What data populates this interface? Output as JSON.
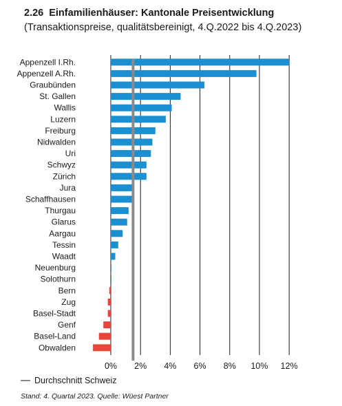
{
  "header": {
    "number": "2.26",
    "title": "Einfamilienhäuser: Kantonale Preisentwicklung",
    "subtitle": "(Transaktionspreise, qualitätsbereinigt, 4.Q.2022 bis 4.Q.2023)"
  },
  "legend": {
    "average_label": "Durchschnitt Schweiz"
  },
  "source": "Stand: 4. Quartal 2023. Quelle: Wüest Partner",
  "colors": {
    "positive": "#1a8fd1",
    "negative": "#e8463d",
    "average": "#8a8a8a",
    "grid": "#1a1a1a"
  },
  "chart_data": {
    "type": "bar",
    "orientation": "horizontal",
    "categories": [
      "Appenzell I.Rh.",
      "Appenzell A.Rh.",
      "Graubünden",
      "St. Gallen",
      "Wallis",
      "Luzern",
      "Freiburg",
      "Nidwalden",
      "Uri",
      "Schwyz",
      "Zürich",
      "Jura",
      "Schaffhausen",
      "Thurgau",
      "Glarus",
      "Aargau",
      "Tessin",
      "Waadt",
      "Neuenburg",
      "Solothurn",
      "Bern",
      "Zug",
      "Basel-Stadt",
      "Genf",
      "Basel-Land",
      "Obwalden"
    ],
    "values": [
      12.0,
      9.8,
      6.3,
      4.7,
      4.1,
      3.7,
      3.0,
      2.8,
      2.7,
      2.4,
      2.4,
      1.5,
      1.5,
      1.2,
      1.1,
      0.8,
      0.5,
      0.3,
      0.05,
      0.0,
      -0.1,
      -0.2,
      -0.2,
      -0.5,
      -0.8,
      -1.2
    ],
    "average": 1.5,
    "xlim": [
      -1.2,
      12
    ],
    "xticks": [
      0,
      2,
      4,
      6,
      8,
      10,
      12
    ],
    "xtick_labels": [
      "0%",
      "2%",
      "4%",
      "6%",
      "8%",
      "10%",
      "12%"
    ],
    "grid": true
  }
}
